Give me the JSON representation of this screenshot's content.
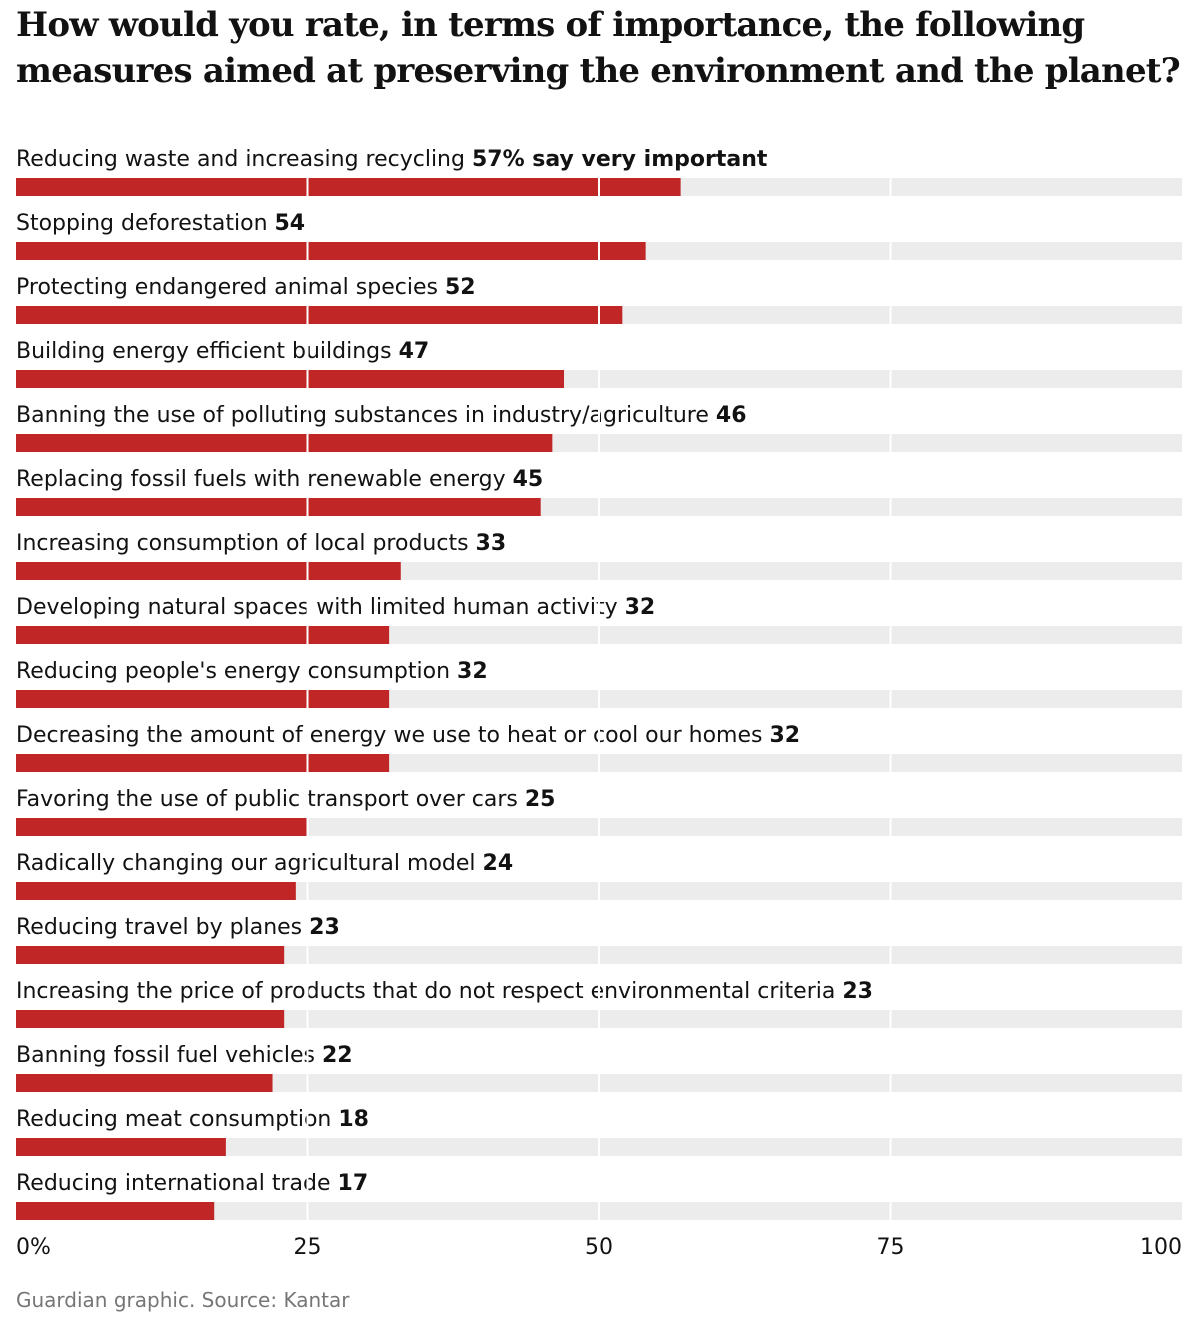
{
  "title": "How would you rate, in terms of importance, the following measures aimed at preserving the environment and the planet?",
  "source": "Guardian graphic. Source: Kantar",
  "colors": {
    "bar": "#c02626",
    "track": "#ececec",
    "grid": "#ffffff"
  },
  "chart_data": {
    "type": "bar",
    "orientation": "horizontal",
    "title": "How would you rate, in terms of importance, the following measures aimed at preserving the environment and the planet?",
    "xlim": [
      0,
      100
    ],
    "xticks": [
      0,
      25,
      50,
      75,
      100
    ],
    "tick_labels": [
      "0%",
      "25",
      "50",
      "75",
      "100"
    ],
    "grid": true,
    "categories": [
      "Reducing waste and increasing recycling",
      "Stopping deforestation",
      "Protecting endangered animal species",
      "Building energy efficient buildings",
      "Banning the use of polluting substances in industry/agriculture",
      "Replacing fossil fuels with renewable energy",
      "Increasing consumption of local products",
      "Developing natural spaces with limited human activity",
      "Reducing people's energy consumption",
      "Decreasing the amount of energy we use to heat or cool our homes",
      "Favoring the use of public transport over cars",
      "Radically changing our agricultural model",
      "Reducing travel by planes",
      "Increasing the price of products that do not respect environmental criteria",
      "Banning fossil fuel vehicles",
      "Reducing meat consumption",
      "Reducing international trade"
    ],
    "values": [
      57,
      54,
      52,
      47,
      46,
      45,
      33,
      32,
      32,
      32,
      25,
      24,
      23,
      23,
      22,
      18,
      17
    ],
    "value_labels": [
      "57% say very important",
      "54",
      "52",
      "47",
      "46",
      "45",
      "33",
      "32",
      "32",
      "32",
      "25",
      "24",
      "23",
      "23",
      "22",
      "18",
      "17"
    ]
  }
}
